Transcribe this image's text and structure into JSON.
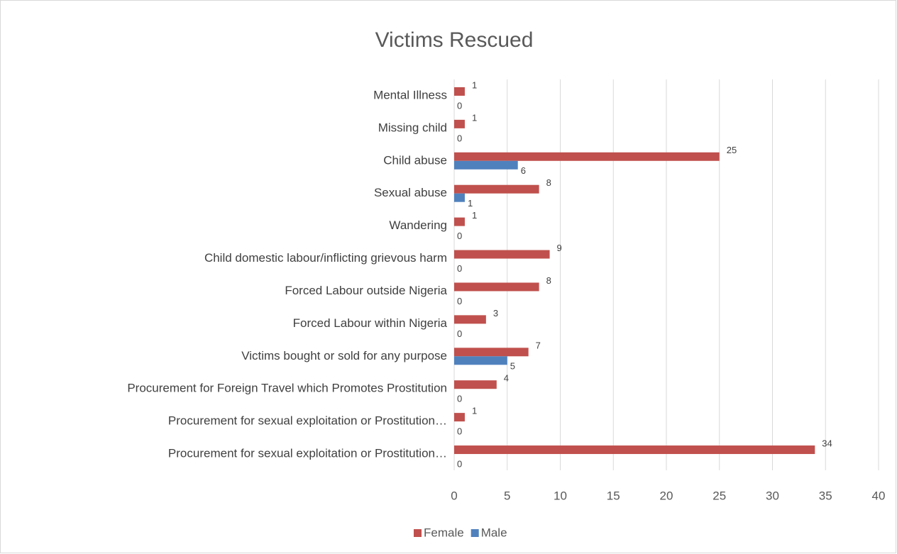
{
  "chart_data": {
    "type": "bar",
    "orientation": "horizontal",
    "title": "Victims Rescued",
    "categories": [
      "Mental Illness",
      "Missing child",
      "Child abuse",
      "Sexual abuse",
      "Wandering",
      "Child domestic labour/inflicting grievous harm",
      "Forced Labour outside Nigeria",
      "Forced Labour within Nigeria",
      "Victims bought or sold for  any purpose",
      "Procurement for Foreign Travel which Promotes Prostitution",
      "Procurement for sexual exploitation or Prostitution…",
      "Procurement for sexual exploitation or Prostitution…"
    ],
    "series": [
      {
        "name": "Female",
        "color": "#c0504d",
        "values": [
          1,
          1,
          25,
          8,
          1,
          9,
          8,
          3,
          7,
          4,
          1,
          34
        ]
      },
      {
        "name": "Male",
        "color": "#4f81bd",
        "values": [
          0,
          0,
          6,
          1,
          0,
          0,
          0,
          0,
          5,
          0,
          0,
          0
        ]
      }
    ],
    "xlim": [
      0,
      40
    ],
    "xticks": [
      0,
      5,
      10,
      15,
      20,
      25,
      30,
      35,
      40
    ],
    "grid": true,
    "legend": "bottom"
  }
}
